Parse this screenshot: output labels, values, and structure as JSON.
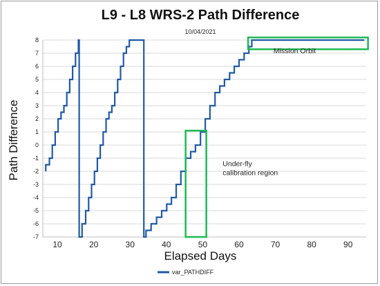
{
  "chart_data": {
    "type": "line",
    "title": "L9 - L8 WRS-2 Path Difference",
    "subtitle": "10/04/2021",
    "xlabel": "Elapsed Days",
    "ylabel": "Path Difference",
    "xlim": [
      6,
      95
    ],
    "ylim": [
      -7,
      8
    ],
    "x_ticks": [
      10,
      20,
      30,
      40,
      50,
      60,
      70,
      80,
      90
    ],
    "y_ticks": [
      -7,
      -6,
      -5,
      -4,
      -3,
      -2,
      -1,
      0,
      1,
      2,
      3,
      4,
      5,
      6,
      7,
      8
    ],
    "grid": "horizontal",
    "legend": "bottom-left",
    "series_color": "#1f5aa6",
    "annotation_color": "#1db954",
    "series": [
      {
        "name": "var_PATHDIFF",
        "x": [
          6.8,
          6.8,
          7.8,
          7.8,
          8.6,
          8.6,
          9.4,
          9.4,
          10.2,
          10.2,
          11.0,
          11.0,
          11.8,
          11.8,
          12.6,
          12.6,
          13.4,
          13.4,
          14.2,
          14.2,
          15.0,
          15.0,
          15.8,
          15.8,
          16.0,
          16.0,
          16.8,
          16.8,
          17.8,
          17.8,
          18.6,
          18.6,
          19.4,
          19.4,
          20.2,
          20.2,
          21.0,
          21.0,
          21.8,
          21.8,
          22.6,
          22.6,
          23.4,
          23.4,
          24.2,
          24.2,
          25.0,
          25.0,
          25.8,
          25.8,
          26.6,
          26.6,
          27.4,
          27.4,
          28.2,
          28.2,
          29.0,
          29.0,
          29.8,
          29.8,
          30.6,
          30.6,
          31.4,
          31.4,
          32.0,
          32.0,
          33.8,
          33.8,
          34.4,
          34.4,
          35.8,
          35.8,
          37.3,
          37.3,
          38.7,
          38.7,
          40.1,
          40.1,
          41.4,
          41.4,
          42.7,
          42.7,
          44.0,
          44.0,
          45.3,
          45.3,
          46.7,
          46.7,
          48.0,
          48.0,
          49.4,
          49.4,
          50.7,
          50.7,
          52.0,
          52.0,
          53.4,
          53.4,
          54.7,
          54.7,
          56.0,
          56.0,
          57.4,
          57.4,
          58.7,
          58.7,
          60.0,
          60.0,
          61.4,
          61.4,
          62.7,
          62.7,
          63.5,
          63.5,
          94.5
        ],
        "y": [
          -2,
          -1.5,
          -1.5,
          -1,
          -1,
          0,
          0,
          1,
          1,
          2,
          2,
          2.5,
          2.5,
          3,
          3,
          4,
          4,
          5,
          5,
          6,
          6,
          7,
          7,
          8,
          8,
          -7,
          -7,
          -6,
          -6,
          -5,
          -5,
          -4,
          -4,
          -3,
          -3,
          -2,
          -2,
          -1,
          -1,
          0,
          0,
          1,
          1,
          2,
          2,
          2.5,
          2.5,
          3,
          3,
          4,
          4,
          5,
          5,
          6,
          6,
          7,
          7,
          7.5,
          7.5,
          8,
          8,
          8,
          8,
          8,
          8,
          8,
          8,
          -7,
          -7,
          -6.5,
          -6.5,
          -6,
          -6,
          -5.5,
          -5.5,
          -5,
          -5,
          -4.5,
          -4.5,
          -4,
          -4,
          -3,
          -3,
          -2,
          -2,
          -1,
          -1,
          -0.5,
          -0.5,
          0,
          0,
          1,
          1,
          2,
          2,
          3,
          3,
          4,
          4,
          4.5,
          4.5,
          5,
          5,
          5.5,
          5.5,
          6,
          6,
          6.5,
          6.5,
          7,
          7,
          7.5,
          7.5,
          8,
          8
        ]
      }
    ],
    "annotations": [
      {
        "text_lines": [
          "Mission Orbit"
        ],
        "box_x": [
          62.5,
          95.5
        ],
        "box_y": [
          7.3,
          8.2
        ],
        "text_at": [
          69.5,
          7.0
        ]
      },
      {
        "text_lines": [
          "Under-fly",
          "calibration region"
        ],
        "box_x": [
          45.3,
          51.0
        ],
        "box_y": [
          -7.0,
          1.1
        ],
        "text_at": [
          55.5,
          -1.6
        ]
      }
    ]
  }
}
